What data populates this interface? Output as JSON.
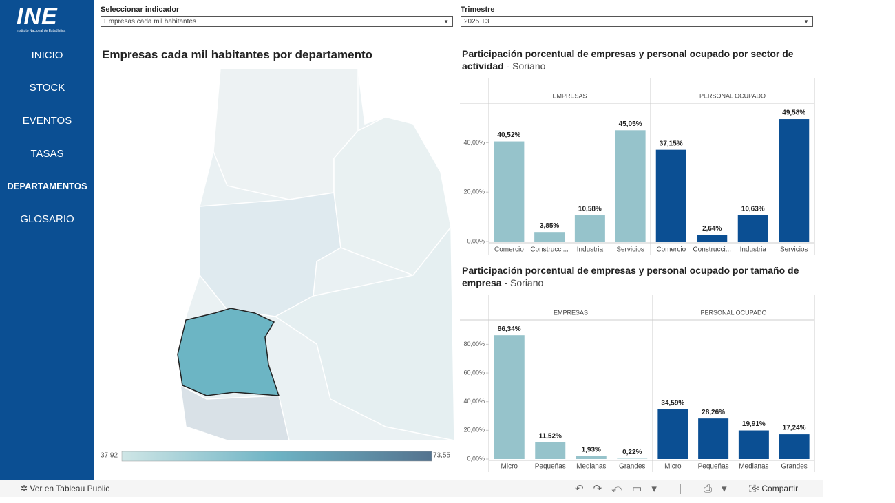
{
  "logo": {
    "text": "INE",
    "caption": "Instituto Nacional de Estadística"
  },
  "nav": [
    "INICIO",
    "STOCK",
    "EVENTOS",
    "TASAS",
    "DEPARTAMENTOS",
    "GLOSARIO"
  ],
  "filters": [
    {
      "label": "Seleccionar indicador",
      "value": "Empresas cada mil habitantes"
    },
    {
      "label": "Trimestre",
      "value": "2025 T3"
    }
  ],
  "map": {
    "title": "Empresas cada mil habitantes por departamento",
    "legend_min": "37,92",
    "legend_max": "73,55"
  },
  "sections": [
    {
      "title": "Participación porcentual de empresas y personal ocupado por sector de actividad",
      "region": "- Soriano"
    },
    {
      "title": "Participación porcentual de empresas y personal ocupado por tamaño de empresa",
      "region": "- Soriano"
    }
  ],
  "chart_data": [
    {
      "type": "bar",
      "title": "EMPRESAS",
      "categories": [
        "Comercio",
        "Construcci...",
        "Industria",
        "Servicios"
      ],
      "values": [
        40.52,
        3.85,
        10.58,
        45.05
      ],
      "value_labels": [
        "40,52%",
        "3,85%",
        "10,58%",
        "45,05%"
      ],
      "color": "#96c3cb",
      "ylim": [
        0,
        56
      ],
      "yticks": [
        {
          "value": 0,
          "label": "0,00%"
        },
        {
          "value": 20,
          "label": "20,00%"
        },
        {
          "value": 40,
          "label": "40,00%"
        }
      ]
    },
    {
      "type": "bar",
      "title": "PERSONAL OCUPADO",
      "categories": [
        "Comercio",
        "Construcci...",
        "Industria",
        "Servicios"
      ],
      "values": [
        37.15,
        2.64,
        10.63,
        49.58
      ],
      "value_labels": [
        "37,15%",
        "2,64%",
        "10,63%",
        "49,58%"
      ],
      "color": "#0b4f93",
      "ylim": [
        0,
        56
      ]
    },
    {
      "type": "bar",
      "title": "EMPRESAS",
      "categories": [
        "Micro",
        "Pequeñas",
        "Medianas",
        "Grandes"
      ],
      "values": [
        86.34,
        11.52,
        1.93,
        0.22
      ],
      "value_labels": [
        "86,34%",
        "11,52%",
        "1,93%",
        "0,22%"
      ],
      "color": "#96c3cb",
      "ylim": [
        0,
        97
      ],
      "yticks": [
        {
          "value": 0,
          "label": "0,00%"
        },
        {
          "value": 20,
          "label": "20,00%"
        },
        {
          "value": 40,
          "label": "40,00%"
        },
        {
          "value": 60,
          "label": "60,00%"
        },
        {
          "value": 80,
          "label": "80,00%"
        }
      ]
    },
    {
      "type": "bar",
      "title": "PERSONAL OCUPADO",
      "categories": [
        "Micro",
        "Pequeñas",
        "Medianas",
        "Grandes"
      ],
      "values": [
        34.59,
        28.26,
        19.91,
        17.24
      ],
      "value_labels": [
        "34,59%",
        "28,26%",
        "19,91%",
        "17,24%"
      ],
      "color": "#0b4f93",
      "ylim": [
        0,
        97
      ]
    }
  ],
  "footer": {
    "tableau": "Ver en Tableau Public",
    "share": "Compartir"
  }
}
